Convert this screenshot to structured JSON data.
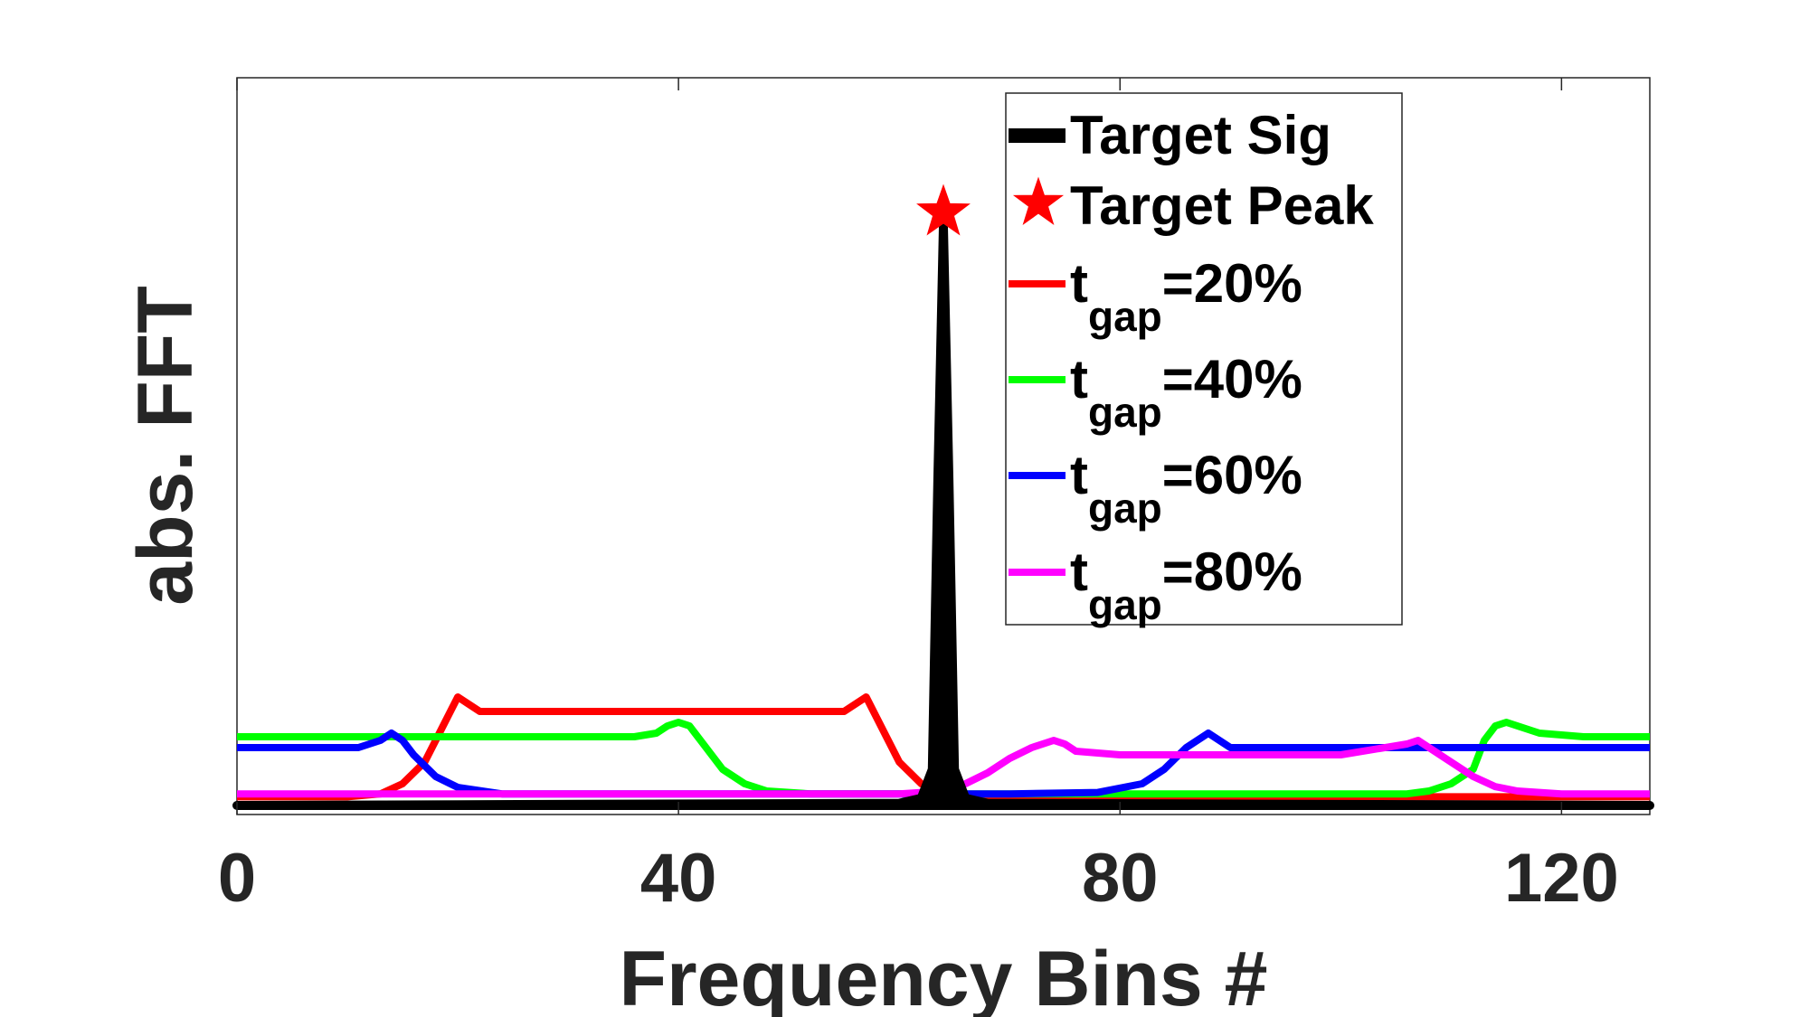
{
  "chart_data": {
    "type": "line",
    "title": "",
    "xlabel": "Frequency Bins #",
    "ylabel": "abs. FFT",
    "xlim": [
      0,
      128
    ],
    "ylim": [
      0,
      1
    ],
    "xticks": [
      0,
      40,
      80,
      120
    ],
    "xtick_labels": [
      "0",
      "40",
      "80",
      "120"
    ],
    "yticks_shown": false,
    "grid": false,
    "legend_position": "top-right",
    "series": [
      {
        "name": "Target Sig",
        "color": "#000000",
        "style": "thick-line",
        "x": [
          0,
          60,
          62,
          63,
          63.5,
          64,
          64.5,
          65,
          66,
          68,
          128
        ],
        "y": [
          0.0,
          0.003,
          0.01,
          0.05,
          0.45,
          0.8,
          0.45,
          0.05,
          0.01,
          0.003,
          0.0
        ]
      },
      {
        "name": "Target Peak",
        "color": "#ff0000",
        "style": "star-marker",
        "x": [
          64
        ],
        "y": [
          0.82
        ]
      },
      {
        "name_main": "t",
        "name_sub": "gap",
        "name_suffix": "=20%",
        "color": "#ff0000",
        "x": [
          0,
          10,
          13,
          15,
          17,
          19,
          20,
          21,
          22,
          30,
          40,
          50,
          55,
          56,
          57,
          58,
          60,
          62,
          64,
          66,
          70,
          80,
          90,
          100,
          110,
          120,
          128
        ],
        "y": [
          0.012,
          0.012,
          0.016,
          0.03,
          0.06,
          0.12,
          0.15,
          0.14,
          0.13,
          0.13,
          0.13,
          0.13,
          0.13,
          0.14,
          0.15,
          0.12,
          0.06,
          0.03,
          0.016,
          0.012,
          0.012,
          0.012,
          0.012,
          0.012,
          0.012,
          0.012,
          0.012
        ]
      },
      {
        "name_main": "t",
        "name_sub": "gap",
        "name_suffix": "=40%",
        "color": "#00ff00",
        "x": [
          0,
          10,
          20,
          30,
          36,
          38,
          39,
          40,
          41,
          42,
          44,
          46,
          48,
          52,
          60,
          70,
          80,
          90,
          100,
          106,
          108,
          110,
          112,
          113,
          114,
          115,
          118,
          122,
          128
        ],
        "y": [
          0.095,
          0.095,
          0.095,
          0.095,
          0.095,
          0.1,
          0.11,
          0.115,
          0.11,
          0.09,
          0.05,
          0.03,
          0.02,
          0.016,
          0.016,
          0.016,
          0.016,
          0.016,
          0.016,
          0.016,
          0.02,
          0.03,
          0.05,
          0.09,
          0.11,
          0.115,
          0.1,
          0.095,
          0.095
        ]
      },
      {
        "name_main": "t",
        "name_sub": "gap",
        "name_suffix": "=60%",
        "color": "#0000ff",
        "x": [
          0,
          8,
          11,
          13,
          14,
          15,
          16,
          18,
          20,
          24,
          30,
          40,
          50,
          60,
          70,
          78,
          82,
          84,
          86,
          87,
          88,
          89,
          90,
          95,
          100,
          110,
          120,
          128
        ],
        "y": [
          0.08,
          0.08,
          0.08,
          0.09,
          0.1,
          0.09,
          0.07,
          0.04,
          0.025,
          0.016,
          0.016,
          0.016,
          0.016,
          0.016,
          0.016,
          0.018,
          0.03,
          0.05,
          0.08,
          0.09,
          0.1,
          0.09,
          0.08,
          0.08,
          0.08,
          0.08,
          0.08,
          0.08
        ]
      },
      {
        "name_main": "t",
        "name_sub": "gap",
        "name_suffix": "=80%",
        "color": "#ff00ff",
        "x": [
          0,
          10,
          20,
          30,
          40,
          50,
          60,
          62,
          64,
          66,
          68,
          70,
          72,
          74,
          75,
          76,
          80,
          90,
          100,
          106,
          107,
          108,
          110,
          112,
          114,
          116,
          120,
          128
        ],
        "y": [
          0.016,
          0.016,
          0.016,
          0.016,
          0.016,
          0.016,
          0.016,
          0.018,
          0.022,
          0.03,
          0.045,
          0.065,
          0.08,
          0.09,
          0.085,
          0.075,
          0.07,
          0.07,
          0.07,
          0.085,
          0.09,
          0.08,
          0.06,
          0.04,
          0.026,
          0.02,
          0.016,
          0.016
        ]
      }
    ]
  }
}
